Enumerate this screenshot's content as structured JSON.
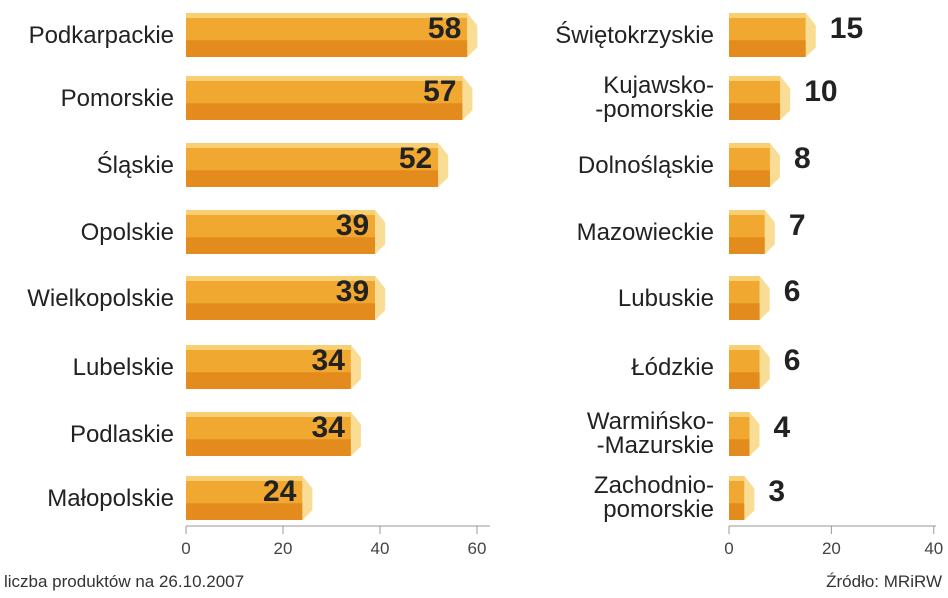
{
  "footnote": "liczba produktów na 26.10.2007",
  "source": "Źródło: MRiRW",
  "colors": {
    "bar_main": "#f0a830",
    "bar_bottom": "#e38b1c",
    "bar_top": "#f8cf72",
    "bar_side": "#f9dd94",
    "text": "#222222",
    "axis": "#9a9a9a"
  },
  "chart_data": [
    {
      "type": "bar",
      "orientation": "horizontal",
      "categories": [
        "Podkarpackie",
        "Pomorskie",
        "Śląskie",
        "Opolskie",
        "Wielkopolskie",
        "Lubelskie",
        "Podlaskie",
        "Małopolskie"
      ],
      "values": [
        58,
        57,
        52,
        39,
        39,
        34,
        34,
        24
      ],
      "xlim": [
        0,
        60
      ],
      "xticks": [
        0,
        20,
        40,
        60
      ],
      "grid": false
    },
    {
      "type": "bar",
      "orientation": "horizontal",
      "categories": [
        "Świętokrzyskie",
        "Kujawsko-\n-pomorskie",
        "Dolnośląskie",
        "Mazowieckie",
        "Lubuskie",
        "Łódzkie",
        "Warmińsko-\n-Mazurskie",
        "Zachodnio-\npomorskie"
      ],
      "values": [
        15,
        10,
        8,
        7,
        6,
        6,
        4,
        3
      ],
      "xlim": [
        0,
        40
      ],
      "xticks": [
        0,
        20,
        40
      ],
      "grid": false
    }
  ]
}
